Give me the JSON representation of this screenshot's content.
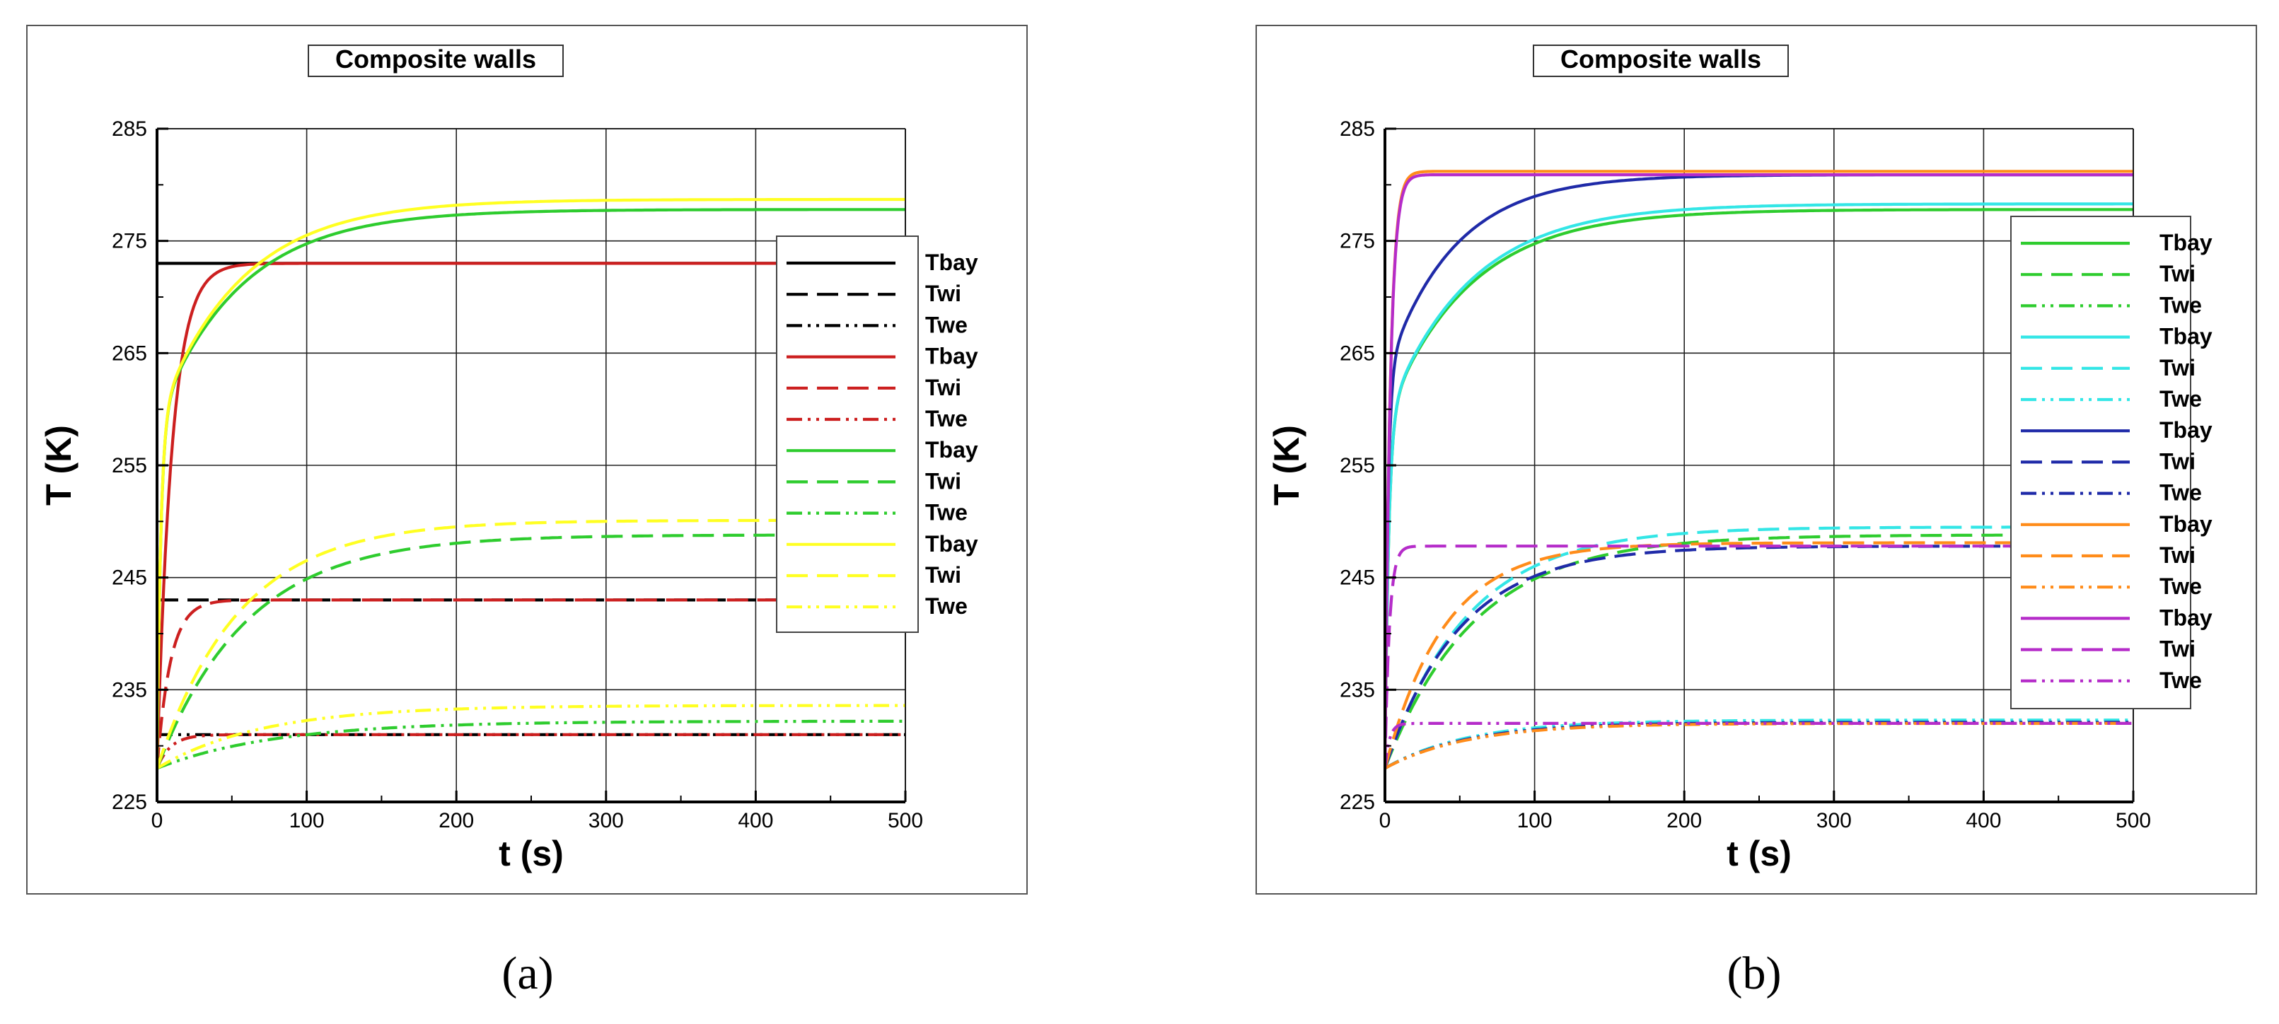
{
  "chart_data": [
    {
      "type": "line",
      "title": "Composite walls",
      "xlabel": "t (s)",
      "ylabel": "T (K)",
      "xlim": [
        0,
        500
      ],
      "ylim": [
        225,
        285
      ],
      "xticks": [
        "0",
        "100",
        "200",
        "300",
        "400",
        "500"
      ],
      "yticks": [
        "225",
        "235",
        "245",
        "255",
        "265",
        "275",
        "285"
      ],
      "grid": true,
      "legend_position": "right",
      "caption": "(a)",
      "series": [
        {
          "name": "Tbay",
          "color": "#000000",
          "dash": "solid",
          "model": "const",
          "start": 273,
          "end": 273
        },
        {
          "name": "Twi",
          "color": "#000000",
          "dash": "dash",
          "model": "const",
          "start": 243,
          "end": 243
        },
        {
          "name": "Twe",
          "color": "#000000",
          "dash": "dashdotdot",
          "model": "const",
          "start": 231,
          "end": 231
        },
        {
          "name": "Tbay",
          "color": "#cc1f1f",
          "dash": "solid",
          "model": "exp",
          "start": 228,
          "end": 273,
          "tau": 10
        },
        {
          "name": "Twi",
          "color": "#cc1f1f",
          "dash": "dash",
          "model": "exp",
          "start": 228,
          "end": 243,
          "tau": 9
        },
        {
          "name": "Twe",
          "color": "#cc1f1f",
          "dash": "dashdotdot",
          "model": "exp",
          "start": 228,
          "end": 231,
          "tau": 9
        },
        {
          "name": "Tbay",
          "color": "#2ecc2e",
          "dash": "solid",
          "model": "exp2",
          "start": 228,
          "end": 277.8,
          "tau": 55,
          "fast": 31,
          "tauFast": 2.5
        },
        {
          "name": "Twi",
          "color": "#2ecc2e",
          "dash": "dash",
          "model": "exp",
          "start": 228,
          "end": 248.8,
          "tau": 60
        },
        {
          "name": "Twe",
          "color": "#2ecc2e",
          "dash": "dashdotdot",
          "model": "exp",
          "start": 228,
          "end": 232.2,
          "tau": 80
        },
        {
          "name": "Tbay",
          "color": "#ffff22",
          "dash": "solid",
          "model": "exp2",
          "start": 228,
          "end": 278.7,
          "tau": 55,
          "fast": 31,
          "tauFast": 2.5
        },
        {
          "name": "Twi",
          "color": "#ffff22",
          "dash": "dash",
          "model": "exp",
          "start": 228,
          "end": 250.1,
          "tau": 55
        },
        {
          "name": "Twe",
          "color": "#ffff22",
          "dash": "dashdotdot",
          "model": "exp",
          "start": 228,
          "end": 233.6,
          "tau": 70
        }
      ]
    },
    {
      "type": "line",
      "title": "Composite walls",
      "xlabel": "t (s)",
      "ylabel": "T (K)",
      "xlim": [
        0,
        500
      ],
      "ylim": [
        225,
        285
      ],
      "xticks": [
        "0",
        "100",
        "200",
        "300",
        "400",
        "500"
      ],
      "yticks": [
        "225",
        "235",
        "245",
        "255",
        "265",
        "275",
        "285"
      ],
      "grid": true,
      "legend_position": "right",
      "caption": "(b)",
      "series": [
        {
          "name": "Tbay",
          "color": "#2ecc2e",
          "dash": "solid",
          "model": "exp2",
          "start": 228,
          "end": 277.8,
          "tau": 55,
          "fast": 31,
          "tauFast": 2.5
        },
        {
          "name": "Twi",
          "color": "#2ecc2e",
          "dash": "dash",
          "model": "exp",
          "start": 228,
          "end": 248.8,
          "tau": 60
        },
        {
          "name": "Twe",
          "color": "#2ecc2e",
          "dash": "dashdotdot",
          "model": "exp",
          "start": 228,
          "end": 232.1,
          "tau": 55
        },
        {
          "name": "Tbay",
          "color": "#33e6e6",
          "dash": "solid",
          "model": "exp2",
          "start": 228,
          "end": 278.3,
          "tau": 55,
          "fast": 31,
          "tauFast": 2.5
        },
        {
          "name": "Twi",
          "color": "#33e6e6",
          "dash": "dash",
          "model": "exp",
          "start": 228,
          "end": 249.5,
          "tau": 55
        },
        {
          "name": "Twe",
          "color": "#33e6e6",
          "dash": "dashdotdot",
          "model": "exp",
          "start": 228,
          "end": 232.3,
          "tau": 55
        },
        {
          "name": "Tbay",
          "color": "#1f2aa8",
          "dash": "solid",
          "model": "exp2",
          "start": 228,
          "end": 280.9,
          "tau": 45,
          "fast": 35,
          "tauFast": 2.0
        },
        {
          "name": "Twi",
          "color": "#1f2aa8",
          "dash": "dash",
          "model": "exp",
          "start": 228,
          "end": 247.8,
          "tau": 50
        },
        {
          "name": "Twe",
          "color": "#1f2aa8",
          "dash": "dashdotdot",
          "model": "exp",
          "start": 228,
          "end": 232.1,
          "tau": 55
        },
        {
          "name": "Tbay",
          "color": "#ff8c1a",
          "dash": "solid",
          "model": "exp",
          "start": 228,
          "end": 281.2,
          "tau": 3.5
        },
        {
          "name": "Twi",
          "color": "#ff8c1a",
          "dash": "dash",
          "model": "exp",
          "start": 228,
          "end": 248.1,
          "tau": 40
        },
        {
          "name": "Twe",
          "color": "#ff8c1a",
          "dash": "dashdotdot",
          "model": "exp",
          "start": 228,
          "end": 232.0,
          "tau": 55
        },
        {
          "name": "Tbay",
          "color": "#b52cc9",
          "dash": "solid",
          "model": "exp",
          "start": 228,
          "end": 280.9,
          "tau": 3.5
        },
        {
          "name": "Twi",
          "color": "#b52cc9",
          "dash": "dash",
          "model": "exp",
          "start": 228,
          "end": 247.8,
          "tau": 3
        },
        {
          "name": "Twe",
          "color": "#b52cc9",
          "dash": "dashdotdot",
          "model": "exp",
          "start": 228,
          "end": 232.0,
          "tau": 3
        }
      ]
    }
  ]
}
